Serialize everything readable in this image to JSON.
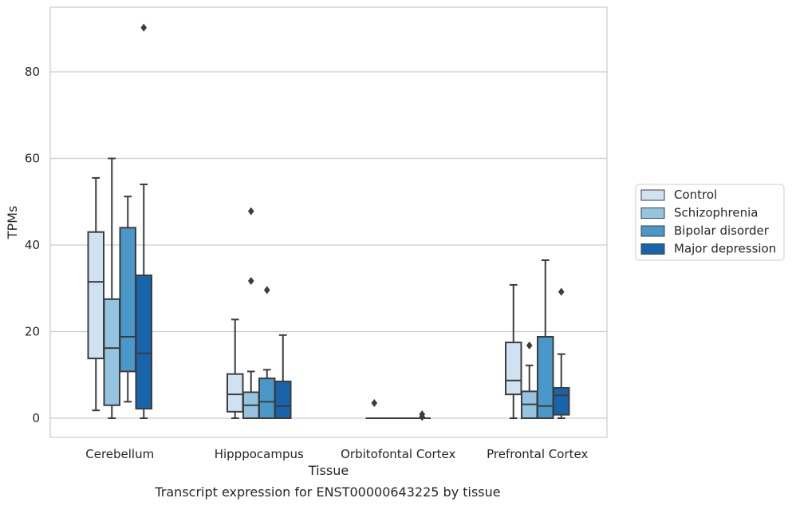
{
  "chart_data": {
    "type": "box",
    "title": "Transcript expression for ENST00000643225 by tissue",
    "xlabel": "Tissue",
    "ylabel": "TPMs",
    "ylim": [
      -4.5,
      95
    ],
    "yticks": [
      0,
      20,
      40,
      60,
      80
    ],
    "grid": "horizontal",
    "legend_position": "right",
    "categories": [
      "Cerebellum",
      "Hipppocampus",
      "Orbitofontal Cortex",
      "Prefrontal Cortex"
    ],
    "series": [
      {
        "name": "Control",
        "color": "#d0e1f2",
        "boxes": [
          {
            "whislo": 1.8,
            "q1": 13.8,
            "med": 31.5,
            "q3": 43.0,
            "whishi": 55.5,
            "fliers": []
          },
          {
            "whislo": 0.0,
            "q1": 1.5,
            "med": 5.5,
            "q3": 10.2,
            "whishi": 22.8,
            "fliers": []
          },
          {
            "whislo": 0.0,
            "q1": 0.0,
            "med": 0.0,
            "q3": 0.0,
            "whishi": 0.0,
            "fliers": [
              3.5
            ]
          },
          {
            "whislo": 0.0,
            "q1": 5.5,
            "med": 8.7,
            "q3": 17.5,
            "whishi": 30.8,
            "fliers": []
          }
        ]
      },
      {
        "name": "Schizophrenia",
        "color": "#94c4df",
        "boxes": [
          {
            "whislo": 0.0,
            "q1": 3.0,
            "med": 16.2,
            "q3": 27.5,
            "whishi": 60.0,
            "fliers": []
          },
          {
            "whislo": 0.0,
            "q1": 0.0,
            "med": 3.0,
            "q3": 6.0,
            "whishi": 10.8,
            "fliers": [
              31.7,
              47.8
            ]
          },
          {
            "whislo": 0.0,
            "q1": 0.0,
            "med": 0.0,
            "q3": 0.0,
            "whishi": 0.0,
            "fliers": []
          },
          {
            "whislo": 0.0,
            "q1": 0.0,
            "med": 3.2,
            "q3": 6.2,
            "whishi": 12.2,
            "fliers": [
              16.8
            ]
          }
        ]
      },
      {
        "name": "Bipolar disorder",
        "color": "#4a98c9",
        "boxes": [
          {
            "whislo": 3.8,
            "q1": 10.8,
            "med": 18.8,
            "q3": 44.0,
            "whishi": 51.2,
            "fliers": []
          },
          {
            "whislo": 0.0,
            "q1": 0.0,
            "med": 3.8,
            "q3": 9.2,
            "whishi": 11.2,
            "fliers": [
              29.6
            ]
          },
          {
            "whislo": 0.0,
            "q1": 0.0,
            "med": 0.0,
            "q3": 0.0,
            "whishi": 0.0,
            "fliers": []
          },
          {
            "whislo": 0.0,
            "q1": 0.0,
            "med": 2.8,
            "q3": 18.8,
            "whishi": 36.5,
            "fliers": []
          }
        ]
      },
      {
        "name": "Major depression",
        "color": "#1764ab",
        "boxes": [
          {
            "whislo": 0.0,
            "q1": 2.2,
            "med": 15.0,
            "q3": 33.0,
            "whishi": 54.0,
            "fliers": [
              90.2
            ]
          },
          {
            "whislo": 0.0,
            "q1": 0.0,
            "med": 2.8,
            "q3": 8.5,
            "whishi": 19.2,
            "fliers": []
          },
          {
            "whislo": 0.0,
            "q1": 0.0,
            "med": 0.0,
            "q3": 0.0,
            "whishi": 0.0,
            "fliers": [
              0.3,
              0.9
            ]
          },
          {
            "whislo": 0.0,
            "q1": 0.8,
            "med": 5.3,
            "q3": 7.0,
            "whishi": 14.8,
            "fliers": [
              29.2
            ]
          }
        ]
      }
    ]
  }
}
